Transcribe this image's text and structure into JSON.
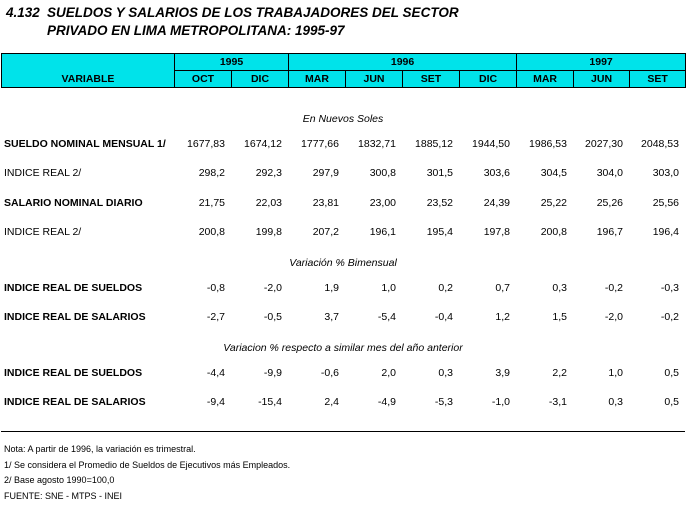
{
  "title": {
    "number": "4.132",
    "line1": "SUELDOS Y SALARIOS DE LOS TRABAJADORES DEL SECTOR",
    "line2": "PRIVADO EN LIMA METROPOLITANA: 1995-97"
  },
  "header": {
    "variable": "VARIABLE",
    "years": [
      "1995",
      "1996",
      "1997"
    ],
    "months": [
      "OCT",
      "DIC",
      "MAR",
      "JUN",
      "SET",
      "DIC",
      "MAR",
      "JUN",
      "SET"
    ]
  },
  "sections": [
    {
      "caption": "En Nuevos Soles",
      "rows": [
        {
          "label": "SUELDO NOMINAL MENSUAL 1/",
          "bold": true,
          "values": [
            "1677,83",
            "1674,12",
            "1777,66",
            "1832,71",
            "1885,12",
            "1944,50",
            "1986,53",
            "2027,30",
            "2048,53"
          ]
        },
        {
          "label": "INDICE REAL  2/",
          "bold": false,
          "values": [
            "298,2",
            "292,3",
            "297,9",
            "300,8",
            "301,5",
            "303,6",
            "304,5",
            "304,0",
            "303,0"
          ]
        },
        {
          "label": "SALARIO NOMINAL DIARIO",
          "bold": true,
          "values": [
            "21,75",
            "22,03",
            "23,81",
            "23,00",
            "23,52",
            "24,39",
            "25,22",
            "25,26",
            "25,56"
          ]
        },
        {
          "label": "INDICE REAL  2/",
          "bold": false,
          "values": [
            "200,8",
            "199,8",
            "207,2",
            "196,1",
            "195,4",
            "197,8",
            "200,8",
            "196,7",
            "196,4"
          ]
        }
      ]
    },
    {
      "caption": "Variación % Bimensual",
      "rows": [
        {
          "label": "INDICE REAL DE SUELDOS",
          "bold": true,
          "values": [
            "-0,8",
            "-2,0",
            "1,9",
            "1,0",
            "0,2",
            "0,7",
            "0,3",
            "-0,2",
            "-0,3"
          ]
        },
        {
          "label": "INDICE REAL DE SALARIOS",
          "bold": true,
          "values": [
            "-2,7",
            "-0,5",
            "3,7",
            "-5,4",
            "-0,4",
            "1,2",
            "1,5",
            "-2,0",
            "-0,2"
          ]
        }
      ]
    },
    {
      "caption": "Variacion % respecto a similar mes del año anterior",
      "rows": [
        {
          "label": "INDICE REAL DE SUELDOS",
          "bold": true,
          "values": [
            "-4,4",
            "-9,9",
            "-0,6",
            "2,0",
            "0,3",
            "3,9",
            "2,2",
            "1,0",
            "0,5"
          ]
        },
        {
          "label": "INDICE REAL DE SALARIOS",
          "bold": true,
          "values": [
            "-9,4",
            "-15,4",
            "2,4",
            "-4,9",
            "-5,3",
            "-1,0",
            "-3,1",
            "0,3",
            "0,5"
          ]
        }
      ]
    }
  ],
  "notes": [
    "Nota:  A partir de 1996,  la variación es trimestral.",
    "1/  Se considera el Promedio de Sueldos de Ejecutivos más Empleados.",
    "2/  Base agosto 1990=100,0",
    "FUENTE: SNE - MTPS - INEI"
  ]
}
